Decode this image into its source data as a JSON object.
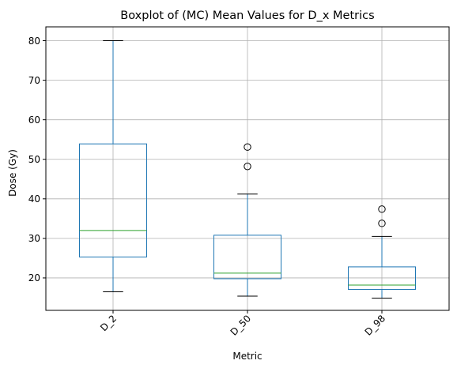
{
  "chart_data": {
    "type": "box",
    "title": "Boxplot of (MC) Mean Values for D_x Metrics",
    "xlabel": "Metric",
    "ylabel": "Dose (Gy)",
    "categories": [
      "D_2",
      "D_50",
      "D_98"
    ],
    "ylim": [
      11.8,
      83.5
    ],
    "yticks": [
      20,
      30,
      40,
      50,
      60,
      70,
      80
    ],
    "grid": true,
    "xtick_rotation": 45,
    "boxes": [
      {
        "name": "D_2",
        "whisker_low": 16.5,
        "q1": 25.3,
        "median": 32.0,
        "q3": 53.9,
        "whisker_high": 80.0,
        "outliers": []
      },
      {
        "name": "D_50",
        "whisker_low": 15.4,
        "q1": 19.8,
        "median": 21.2,
        "q3": 30.8,
        "whisker_high": 41.2,
        "outliers": [
          48.2,
          53.1
        ]
      },
      {
        "name": "D_98",
        "whisker_low": 14.9,
        "q1": 17.1,
        "median": 18.2,
        "q3": 22.8,
        "whisker_high": 30.5,
        "outliers": [
          33.8,
          37.4
        ]
      }
    ],
    "colors": {
      "box": "#1f77b4",
      "median": "#2ca02c",
      "whisker": "#1f77b4",
      "cap": "#000000",
      "outlier": "#000000",
      "grid": "#b0b0b0"
    }
  }
}
